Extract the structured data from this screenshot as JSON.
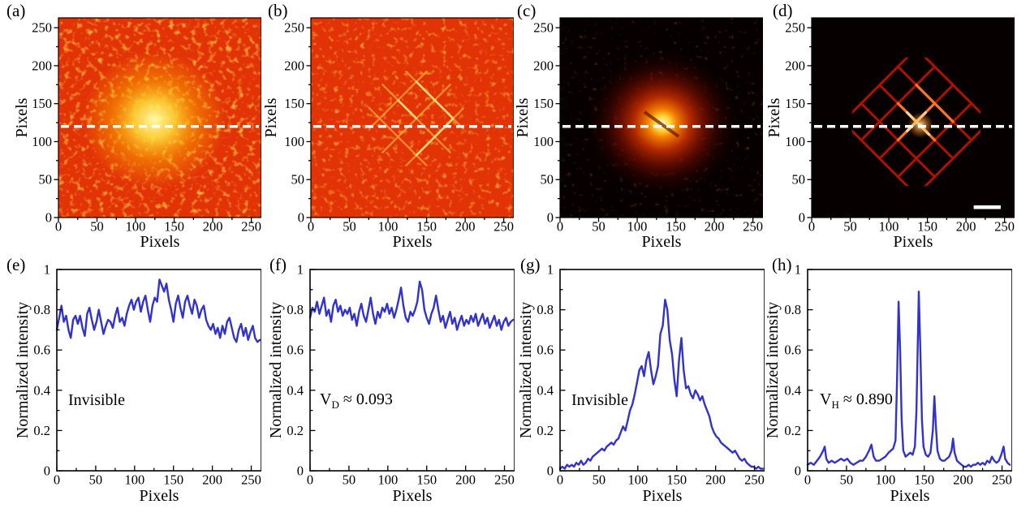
{
  "colors": {
    "line_blue": "#3232cc",
    "dashed_line": "#ffffff",
    "hot_base_red": "#e23307",
    "dark_base": "#070000",
    "background": "#ffffff",
    "scale_bar": "#ffffff"
  },
  "chart_data": [
    {
      "panel_label": "(a)",
      "type": "heatmap",
      "xlabel": "Pixels",
      "ylabel": "Pixels",
      "xlim": [
        0,
        263
      ],
      "ylim": [
        0,
        263
      ],
      "xticks": [
        0,
        50,
        100,
        150,
        200,
        250
      ],
      "xtick_labels": [
        "0",
        "50",
        "100",
        "150",
        "200",
        "250"
      ],
      "yticks": [
        0,
        50,
        100,
        150,
        200,
        250
      ],
      "ytick_labels": [
        "0",
        "50",
        "100",
        "150",
        "200",
        "250"
      ],
      "colormap": "hot",
      "dashed_line_y": 120,
      "description": "Uniform bright red-orange laser speckle with a broad yellow hotspot centered near pixel (130,125); hidden object not visible."
    },
    {
      "panel_label": "(b)",
      "type": "heatmap",
      "xlabel": "Pixels",
      "ylabel": "Pixels",
      "xlim": [
        0,
        263
      ],
      "ylim": [
        0,
        263
      ],
      "xticks": [
        0,
        50,
        100,
        150,
        200,
        250
      ],
      "xtick_labels": [
        "0",
        "50",
        "100",
        "150",
        "200",
        "250"
      ],
      "yticks": [
        0,
        50,
        100,
        150,
        200,
        250
      ],
      "ytick_labels": [
        "0",
        "50",
        "100",
        "150",
        "200",
        "250"
      ],
      "colormap": "hot",
      "dashed_line_y": 120,
      "description": "Red-orange speckle with a faint yellow diamond-mesh outline of the hidden grid appearing near the center."
    },
    {
      "panel_label": "(c)",
      "type": "heatmap",
      "xlabel": "Pixels",
      "ylabel": "Pixels",
      "xlim": [
        0,
        263
      ],
      "ylim": [
        0,
        263
      ],
      "xticks": [
        0,
        50,
        100,
        150,
        200,
        250
      ],
      "xtick_labels": [
        "0",
        "50",
        "100",
        "150",
        "200",
        "250"
      ],
      "yticks": [
        0,
        50,
        100,
        150,
        200,
        250
      ],
      "ytick_labels": [
        "0",
        "50",
        "100",
        "150",
        "200",
        "250"
      ],
      "colormap": "hot",
      "dashed_line_y": 120,
      "description": "Dark field; diffuse red glow with a bright yellow core centered near pixel (133,123); object outline not visible."
    },
    {
      "panel_label": "(d)",
      "type": "heatmap",
      "xlabel": "Pixels",
      "ylabel": "Pixels",
      "xlim": [
        0,
        263
      ],
      "ylim": [
        0,
        263
      ],
      "xticks": [
        0,
        50,
        100,
        150,
        200,
        250
      ],
      "xtick_labels": [
        "0",
        "50",
        "100",
        "150",
        "200",
        "250"
      ],
      "yticks": [
        0,
        50,
        100,
        150,
        200,
        250
      ],
      "ytick_labels": [
        "0",
        "50",
        "100",
        "150",
        "200",
        "250"
      ],
      "colormap": "hot",
      "dashed_line_y": 120,
      "scale_bar": true,
      "description": "Dark field; red diamond-mesh grid pattern of the hidden object clearly revealed, brightest near center; white scale bar at lower right."
    },
    {
      "panel_label": "(e)",
      "type": "line",
      "xlabel": "Pixels",
      "ylabel": "Normalized intensity",
      "xlim": [
        0,
        263
      ],
      "ylim": [
        0,
        1
      ],
      "xticks": [
        0,
        50,
        100,
        150,
        200,
        250
      ],
      "xtick_labels": [
        "0",
        "50",
        "100",
        "150",
        "200",
        "250"
      ],
      "yticks": [
        0,
        0.2,
        0.4,
        0.6,
        0.8,
        1
      ],
      "ytick_labels": [
        "0",
        "0.2",
        "0.4",
        "0.6",
        "0.8",
        "1"
      ],
      "annotation": {
        "main": "Invisible",
        "sub": "",
        "tail": ""
      },
      "x": [
        0,
        3,
        6,
        9,
        12,
        15,
        18,
        21,
        24,
        27,
        30,
        33,
        36,
        39,
        42,
        45,
        48,
        51,
        54,
        57,
        60,
        63,
        66,
        69,
        72,
        75,
        78,
        81,
        84,
        87,
        90,
        93,
        96,
        99,
        102,
        105,
        108,
        111,
        114,
        117,
        120,
        123,
        126,
        129,
        132,
        135,
        138,
        141,
        144,
        147,
        150,
        153,
        156,
        159,
        162,
        165,
        168,
        171,
        174,
        177,
        180,
        183,
        186,
        189,
        192,
        195,
        198,
        201,
        204,
        207,
        210,
        213,
        216,
        219,
        222,
        225,
        228,
        231,
        234,
        237,
        240,
        243,
        246,
        249,
        252,
        255,
        258,
        261
      ],
      "y": [
        0.7,
        0.76,
        0.82,
        0.74,
        0.77,
        0.7,
        0.66,
        0.75,
        0.77,
        0.73,
        0.77,
        0.71,
        0.67,
        0.78,
        0.81,
        0.75,
        0.7,
        0.74,
        0.8,
        0.74,
        0.68,
        0.72,
        0.75,
        0.74,
        0.71,
        0.77,
        0.81,
        0.74,
        0.76,
        0.72,
        0.78,
        0.82,
        0.85,
        0.8,
        0.84,
        0.86,
        0.79,
        0.84,
        0.87,
        0.8,
        0.74,
        0.82,
        0.86,
        0.84,
        0.95,
        0.92,
        0.89,
        0.93,
        0.85,
        0.8,
        0.74,
        0.83,
        0.87,
        0.81,
        0.76,
        0.84,
        0.87,
        0.82,
        0.78,
        0.85,
        0.82,
        0.76,
        0.8,
        0.82,
        0.75,
        0.72,
        0.7,
        0.73,
        0.68,
        0.71,
        0.66,
        0.72,
        0.68,
        0.74,
        0.76,
        0.71,
        0.66,
        0.64,
        0.7,
        0.73,
        0.67,
        0.71,
        0.65,
        0.69,
        0.72,
        0.66,
        0.64,
        0.65
      ]
    },
    {
      "panel_label": "(f)",
      "type": "line",
      "xlabel": "Pixels",
      "ylabel": "Normalized intensity",
      "xlim": [
        0,
        263
      ],
      "ylim": [
        0,
        1
      ],
      "xticks": [
        0,
        50,
        100,
        150,
        200,
        250
      ],
      "xtick_labels": [
        "0",
        "50",
        "100",
        "150",
        "200",
        "250"
      ],
      "yticks": [
        0,
        0.2,
        0.4,
        0.6,
        0.8,
        1
      ],
      "ytick_labels": [
        "0",
        "0.2",
        "0.4",
        "0.6",
        "0.8",
        "1"
      ],
      "annotation": {
        "main": "V",
        "sub": "D",
        "tail": " ≈ 0.093"
      },
      "x": [
        0,
        3,
        6,
        9,
        12,
        15,
        18,
        21,
        24,
        27,
        30,
        33,
        36,
        39,
        42,
        45,
        48,
        51,
        54,
        57,
        60,
        63,
        66,
        69,
        72,
        75,
        78,
        81,
        84,
        87,
        90,
        93,
        96,
        99,
        102,
        105,
        108,
        111,
        114,
        117,
        120,
        123,
        126,
        129,
        132,
        135,
        138,
        141,
        144,
        147,
        150,
        153,
        156,
        159,
        162,
        165,
        168,
        171,
        174,
        177,
        180,
        183,
        186,
        189,
        192,
        195,
        198,
        201,
        204,
        207,
        210,
        213,
        216,
        219,
        222,
        225,
        228,
        231,
        234,
        237,
        240,
        243,
        246,
        249,
        252,
        255,
        258,
        261
      ],
      "y": [
        0.76,
        0.81,
        0.79,
        0.84,
        0.78,
        0.82,
        0.86,
        0.77,
        0.8,
        0.74,
        0.82,
        0.85,
        0.79,
        0.82,
        0.77,
        0.8,
        0.78,
        0.81,
        0.75,
        0.78,
        0.72,
        0.79,
        0.83,
        0.77,
        0.74,
        0.8,
        0.86,
        0.78,
        0.73,
        0.79,
        0.76,
        0.81,
        0.79,
        0.83,
        0.78,
        0.81,
        0.76,
        0.8,
        0.85,
        0.91,
        0.82,
        0.76,
        0.74,
        0.79,
        0.77,
        0.8,
        0.84,
        0.94,
        0.9,
        0.8,
        0.76,
        0.73,
        0.78,
        0.81,
        0.87,
        0.8,
        0.74,
        0.77,
        0.71,
        0.75,
        0.79,
        0.73,
        0.76,
        0.7,
        0.74,
        0.77,
        0.72,
        0.75,
        0.73,
        0.77,
        0.74,
        0.78,
        0.72,
        0.75,
        0.78,
        0.73,
        0.76,
        0.71,
        0.74,
        0.77,
        0.72,
        0.75,
        0.7,
        0.74,
        0.76,
        0.72,
        0.74,
        0.75
      ]
    },
    {
      "panel_label": "(g)",
      "type": "line",
      "xlabel": "Pixels",
      "ylabel": "Normalized intensity",
      "xlim": [
        0,
        263
      ],
      "ylim": [
        0,
        1
      ],
      "xticks": [
        0,
        50,
        100,
        150,
        200,
        250
      ],
      "xtick_labels": [
        "0",
        "50",
        "100",
        "150",
        "200",
        "250"
      ],
      "yticks": [
        0,
        0.2,
        0.4,
        0.6,
        0.8,
        1
      ],
      "ytick_labels": [
        "0",
        "0.2",
        "0.4",
        "0.6",
        "0.8",
        "1"
      ],
      "annotation": {
        "main": "Invisible",
        "sub": "",
        "tail": ""
      },
      "x": [
        0,
        3,
        6,
        9,
        12,
        15,
        18,
        21,
        24,
        27,
        30,
        33,
        36,
        39,
        42,
        45,
        48,
        51,
        54,
        57,
        60,
        63,
        66,
        69,
        72,
        75,
        78,
        81,
        84,
        87,
        90,
        93,
        96,
        99,
        102,
        105,
        108,
        111,
        114,
        117,
        120,
        123,
        126,
        129,
        132,
        135,
        138,
        141,
        144,
        147,
        150,
        153,
        156,
        159,
        162,
        165,
        168,
        171,
        174,
        177,
        180,
        183,
        186,
        189,
        192,
        195,
        198,
        201,
        204,
        207,
        210,
        213,
        216,
        219,
        222,
        225,
        228,
        231,
        234,
        237,
        240,
        243,
        246,
        249,
        252,
        255,
        258,
        261
      ],
      "y": [
        0.01,
        0.02,
        0.01,
        0.03,
        0.02,
        0.03,
        0.02,
        0.04,
        0.03,
        0.05,
        0.03,
        0.04,
        0.06,
        0.05,
        0.07,
        0.08,
        0.09,
        0.1,
        0.11,
        0.1,
        0.12,
        0.13,
        0.14,
        0.13,
        0.15,
        0.16,
        0.19,
        0.22,
        0.2,
        0.25,
        0.3,
        0.33,
        0.38,
        0.44,
        0.5,
        0.52,
        0.47,
        0.55,
        0.59,
        0.5,
        0.43,
        0.47,
        0.52,
        0.68,
        0.72,
        0.85,
        0.8,
        0.65,
        0.58,
        0.45,
        0.37,
        0.55,
        0.66,
        0.5,
        0.41,
        0.42,
        0.38,
        0.36,
        0.4,
        0.38,
        0.35,
        0.37,
        0.33,
        0.3,
        0.27,
        0.22,
        0.19,
        0.17,
        0.16,
        0.14,
        0.13,
        0.12,
        0.11,
        0.1,
        0.09,
        0.1,
        0.08,
        0.06,
        0.05,
        0.06,
        0.04,
        0.03,
        0.02,
        0.02,
        0.01,
        0.02,
        0.01,
        0.01
      ]
    },
    {
      "panel_label": "(h)",
      "type": "line",
      "xlabel": "Pixels",
      "ylabel": "Normalized intensity",
      "xlim": [
        0,
        263
      ],
      "ylim": [
        0,
        1
      ],
      "xticks": [
        0,
        50,
        100,
        150,
        200,
        250
      ],
      "xtick_labels": [
        "0",
        "50",
        "100",
        "150",
        "200",
        "250"
      ],
      "yticks": [
        0,
        0.2,
        0.4,
        0.6,
        0.8,
        1
      ],
      "ytick_labels": [
        "0",
        "0.2",
        "0.4",
        "0.6",
        "0.8",
        "1"
      ],
      "annotation": {
        "main": "V",
        "sub": "H",
        "tail": " ≈ 0.890"
      },
      "x": [
        0,
        4,
        8,
        12,
        16,
        20,
        22,
        24,
        27,
        31,
        35,
        39,
        43,
        47,
        51,
        55,
        59,
        63,
        67,
        71,
        75,
        79,
        82,
        85,
        88,
        92,
        96,
        100,
        104,
        107,
        110,
        113,
        115,
        117,
        119,
        121,
        123,
        126,
        129,
        132,
        135,
        138,
        140,
        143,
        145,
        147,
        149,
        152,
        155,
        158,
        161,
        163,
        165,
        167,
        170,
        173,
        176,
        179,
        182,
        185,
        187,
        189,
        192,
        195,
        198,
        201,
        204,
        207,
        210,
        213,
        216,
        219,
        222,
        225,
        228,
        231,
        234,
        237,
        240,
        243,
        246,
        249,
        252,
        254,
        257,
        260
      ],
      "y": [
        0.03,
        0.04,
        0.03,
        0.05,
        0.07,
        0.1,
        0.12,
        0.06,
        0.04,
        0.05,
        0.04,
        0.05,
        0.06,
        0.05,
        0.06,
        0.04,
        0.03,
        0.04,
        0.05,
        0.05,
        0.07,
        0.1,
        0.13,
        0.07,
        0.05,
        0.05,
        0.06,
        0.07,
        0.09,
        0.1,
        0.11,
        0.15,
        0.45,
        0.84,
        0.6,
        0.25,
        0.1,
        0.07,
        0.08,
        0.09,
        0.08,
        0.12,
        0.3,
        0.89,
        0.6,
        0.25,
        0.12,
        0.08,
        0.07,
        0.09,
        0.2,
        0.37,
        0.22,
        0.1,
        0.06,
        0.05,
        0.05,
        0.06,
        0.07,
        0.1,
        0.16,
        0.09,
        0.05,
        0.04,
        0.03,
        0.02,
        0.02,
        0.03,
        0.02,
        0.03,
        0.03,
        0.04,
        0.03,
        0.04,
        0.03,
        0.05,
        0.04,
        0.07,
        0.05,
        0.04,
        0.05,
        0.08,
        0.12,
        0.06,
        0.04,
        0.03
      ]
    }
  ]
}
